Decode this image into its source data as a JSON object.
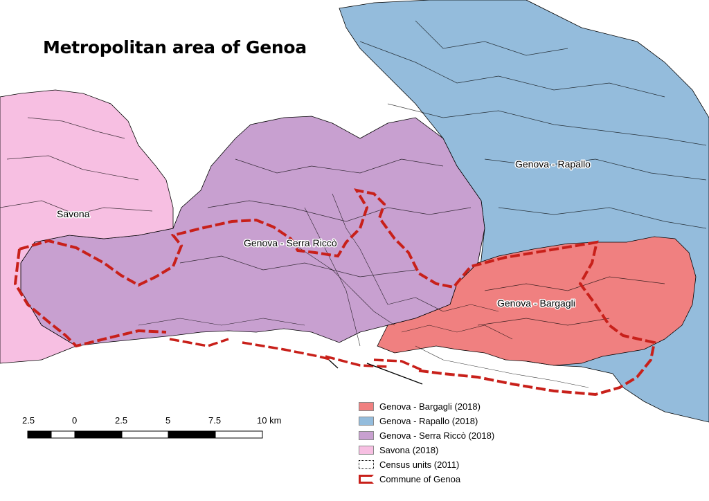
{
  "title": "Metropolitan area of Genoa",
  "regions": [
    {
      "key": "bargagli",
      "label": "Genova - Bargagli",
      "color": "#f08080"
    },
    {
      "key": "rapallo",
      "label": "Genova - Rapallo",
      "color": "#94bcdc"
    },
    {
      "key": "serra",
      "label": "Genova - Serra Riccò",
      "color": "#c8a0d0"
    },
    {
      "key": "savona",
      "label": "Savona",
      "color": "#f7bfe2"
    }
  ],
  "scale_bar": {
    "ticks": [
      "2.5",
      "0",
      "2.5",
      "5",
      "7.5",
      "10 km"
    ]
  },
  "legend": {
    "items": [
      {
        "label": "Genova - Bargagli (2018)",
        "symbol": "fill",
        "color": "#f08080"
      },
      {
        "label": "Genova - Rapallo (2018)",
        "symbol": "fill",
        "color": "#94bcdc"
      },
      {
        "label": "Genova - Serra Riccò (2018)",
        "symbol": "fill",
        "color": "#c8a0d0"
      },
      {
        "label": "Savona (2018)",
        "symbol": "fill",
        "color": "#f7bfe2"
      },
      {
        "label": "Census units (2011)",
        "symbol": "dotted-outline",
        "color": "#000000"
      },
      {
        "label": "Commune of Genoa",
        "symbol": "dashed-outline",
        "color": "#c8201a"
      }
    ]
  },
  "colors": {
    "boundary_line": "#000000",
    "commune_outline": "#c8201a",
    "sea": "#ffffff"
  }
}
